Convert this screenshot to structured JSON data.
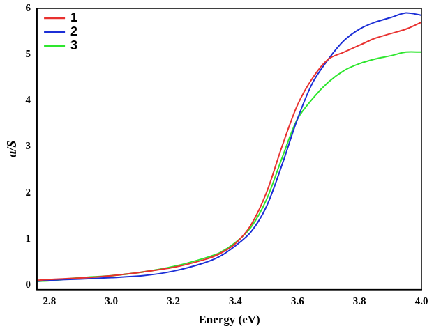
{
  "chart_data": {
    "type": "line",
    "x_label": "Energy (eV)",
    "y_label": "a/S",
    "x": [
      2.76,
      2.8,
      2.9,
      3.0,
      3.1,
      3.2,
      3.3,
      3.35,
      3.4,
      3.45,
      3.5,
      3.55,
      3.6,
      3.65,
      3.7,
      3.75,
      3.8,
      3.85,
      3.9,
      3.95,
      4.0
    ],
    "series": [
      {
        "name": "1",
        "color": "#e8312f",
        "values": [
          0.1,
          0.12,
          0.15,
          0.2,
          0.28,
          0.38,
          0.55,
          0.68,
          0.9,
          1.3,
          2.0,
          3.0,
          3.9,
          4.5,
          4.9,
          5.05,
          5.2,
          5.35,
          5.45,
          5.55,
          5.7
        ]
      },
      {
        "name": "2",
        "color": "#1c2fd6",
        "values": [
          0.08,
          0.1,
          0.13,
          0.16,
          0.2,
          0.3,
          0.48,
          0.62,
          0.85,
          1.15,
          1.7,
          2.6,
          3.6,
          4.4,
          4.9,
          5.3,
          5.55,
          5.7,
          5.8,
          5.9,
          5.85
        ]
      },
      {
        "name": "3",
        "color": "#2ee62e",
        "values": [
          0.08,
          0.09,
          0.16,
          0.2,
          0.28,
          0.4,
          0.58,
          0.7,
          0.92,
          1.25,
          1.85,
          2.75,
          3.6,
          4.05,
          4.4,
          4.65,
          4.8,
          4.9,
          4.97,
          5.05,
          5.05
        ]
      }
    ],
    "xlim": [
      2.76,
      4.0
    ],
    "xticks": [
      2.8,
      {
        "value": 3,
        "label": "3.0"
      },
      3.2,
      3.4,
      3.6,
      3.8,
      {
        "value": 4,
        "label": "4.0"
      }
    ],
    "ylim": [
      -0.1,
      6
    ],
    "yticks": [
      0,
      1,
      2,
      3,
      4,
      5,
      6
    ],
    "legend": "upper left",
    "grid": false
  }
}
